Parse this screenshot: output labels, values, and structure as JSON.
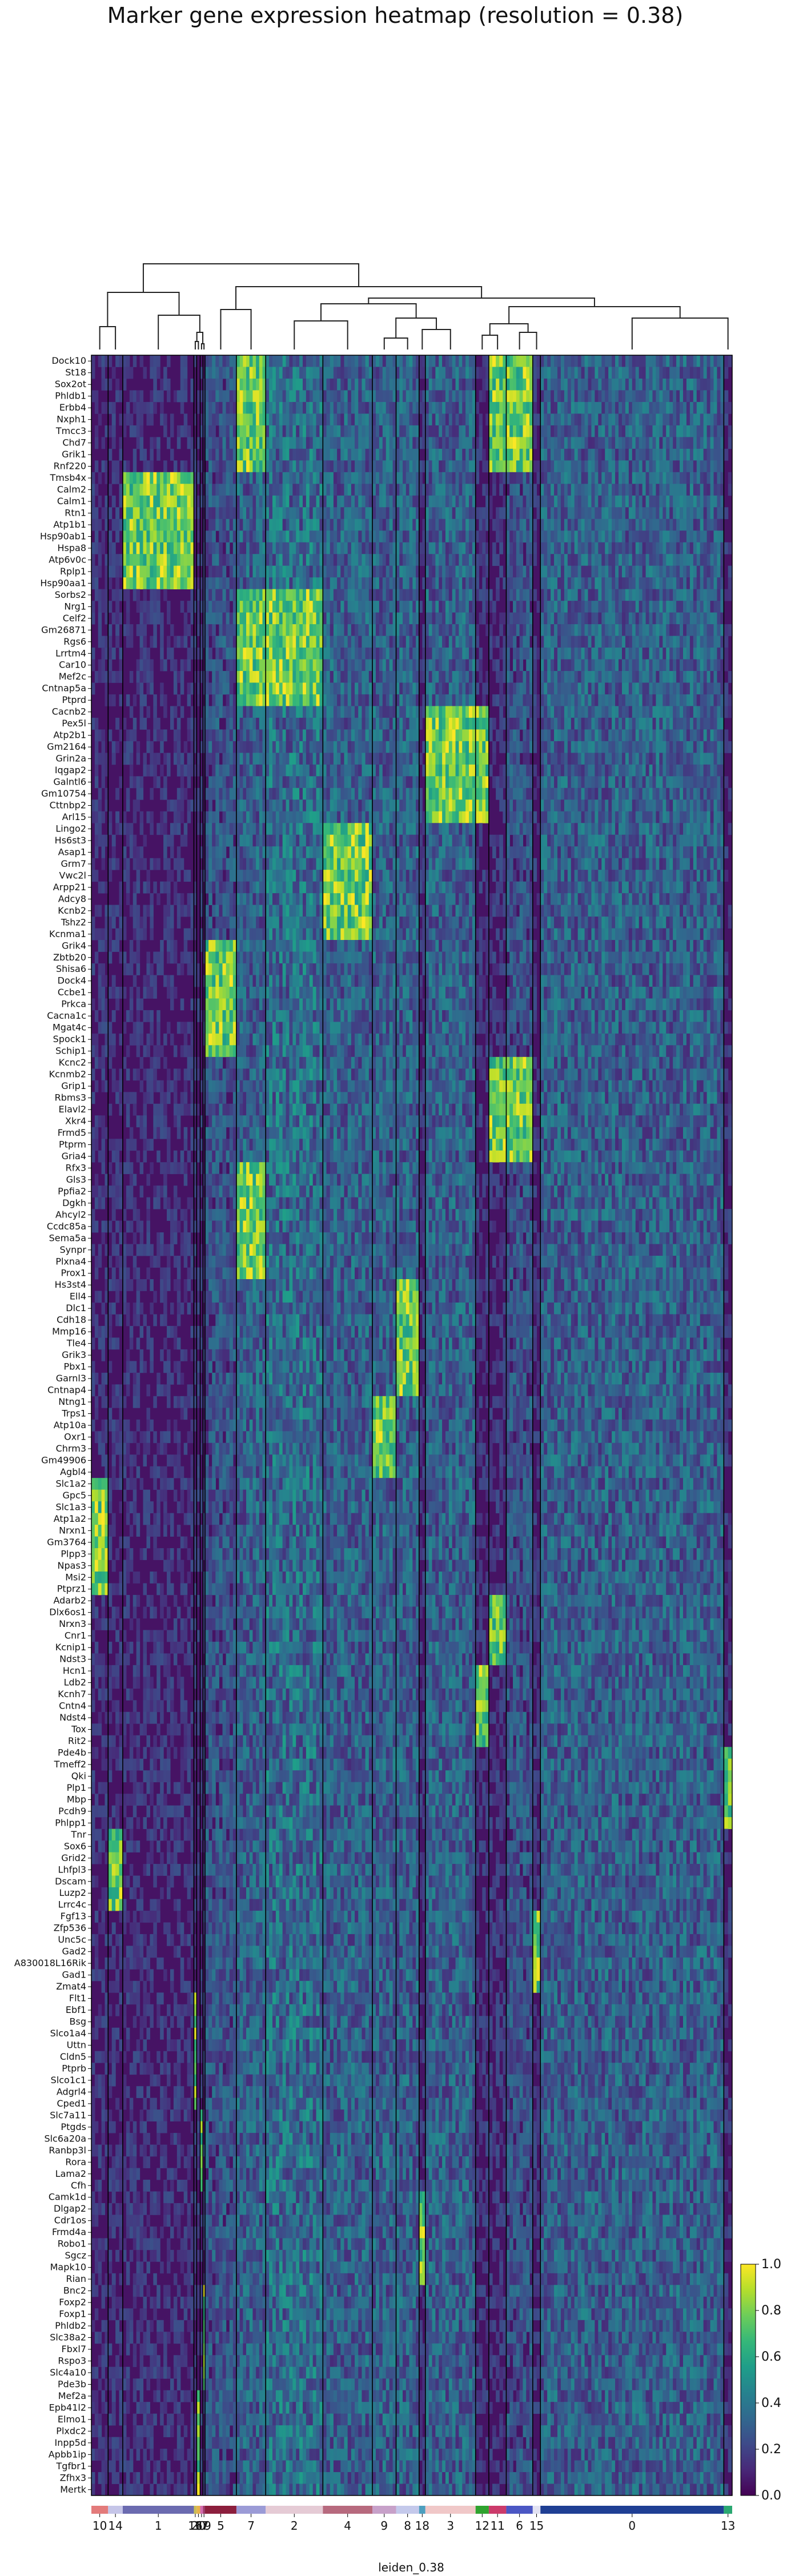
{
  "chart_data": {
    "type": "heatmap",
    "title": "Marker gene expression heatmap (resolution = 0.38)",
    "xlabel": "leiden_0.38",
    "ylabel": "",
    "colormap": "viridis",
    "colorbar": {
      "min": 0.0,
      "max": 1.0,
      "ticks": [
        "0.0",
        "0.2",
        "0.4",
        "0.6",
        "0.8",
        "1.0"
      ]
    },
    "clusters": [
      {
        "label": "10",
        "width": 0.024,
        "color": "#e37b7b"
      },
      {
        "label": "14",
        "width": 0.021,
        "color": "#c5c5e8"
      },
      {
        "label": "1",
        "width": 0.102,
        "color": "#6b6bb0"
      },
      {
        "label": "16",
        "width": 0.004,
        "color": "#c9bd56"
      },
      {
        "label": "20",
        "width": 0.005,
        "color": "#e7b34a"
      },
      {
        "label": "17",
        "width": 0.004,
        "color": "#d46bb0"
      },
      {
        "label": "19",
        "width": 0.003,
        "color": "#9e3a6a"
      },
      {
        "label": "5",
        "width": 0.045,
        "color": "#8c1f3d"
      },
      {
        "label": "7",
        "width": 0.042,
        "color": "#9b9bd6"
      },
      {
        "label": "2",
        "width": 0.082,
        "color": "#e5cbd5"
      },
      {
        "label": "4",
        "width": 0.071,
        "color": "#b76a7e"
      },
      {
        "label": "9",
        "width": 0.034,
        "color": "#c7a1c9"
      },
      {
        "label": "8",
        "width": 0.033,
        "color": "#c4c9eb"
      },
      {
        "label": "18",
        "width": 0.009,
        "color": "#4d9fbf"
      },
      {
        "label": "3",
        "width": 0.072,
        "color": "#f0c8c8"
      },
      {
        "label": "12",
        "width": 0.019,
        "color": "#2fa32f"
      },
      {
        "label": "11",
        "width": 0.025,
        "color": "#cc3b6b"
      },
      {
        "label": "6",
        "width": 0.038,
        "color": "#4b57c4"
      },
      {
        "label": "15",
        "width": 0.011,
        "color": "#e2e2f2"
      },
      {
        "label": "0",
        "width": 0.263,
        "color": "#1f3f94"
      },
      {
        "label": "13",
        "width": 0.012,
        "color": "#2aa872"
      }
    ],
    "gene_groups": [
      {
        "genes": [
          "Dock10",
          "St18",
          "Sox2ot",
          "Phldb1",
          "Erbb4",
          "Nxph1",
          "Tmcc3",
          "Chd7",
          "Grik1",
          "Rnf220"
        ],
        "high": [
          "7",
          "11",
          "6"
        ]
      },
      {
        "genes": [
          "Tmsb4x",
          "Calm2",
          "Calm1",
          "Rtn1",
          "Atp1b1",
          "Hsp90ab1",
          "Hspa8",
          "Atp6v0c",
          "Rplp1",
          "Hsp90aa1"
        ],
        "high": [
          "1"
        ]
      },
      {
        "genes": [
          "Sorbs2",
          "Nrg1",
          "Celf2",
          "Gm26871",
          "Rgs6",
          "Lrrtm4",
          "Car10",
          "Mef2c",
          "Cntnap5a",
          "Ptprd"
        ],
        "high": [
          "2",
          "7"
        ]
      },
      {
        "genes": [
          "Cacnb2",
          "Pex5l",
          "Atp2b1",
          "Gm2164",
          "Grin2a",
          "Iqgap2",
          "Galntl6",
          "Gm10754",
          "Cttnbp2",
          "Arl15"
        ],
        "high": [
          "3",
          "12"
        ]
      },
      {
        "genes": [
          "Lingo2",
          "Hs6st3",
          "Asap1",
          "Grm7",
          "Vwc2l",
          "Arpp21",
          "Adcy8",
          "Kcnb2",
          "Tshz2",
          "Kcnma1"
        ],
        "high": [
          "4"
        ]
      },
      {
        "genes": [
          "Grik4",
          "Zbtb20",
          "Shisa6",
          "Dock4",
          "Ccbe1",
          "Prkca",
          "Cacna1c",
          "Mgat4c",
          "Spock1",
          "Schip1"
        ],
        "high": [
          "5"
        ]
      },
      {
        "genes": [
          "Kcnc2",
          "Kcnmb2",
          "Grip1",
          "Rbms3",
          "Elavl2",
          "Xkr4",
          "Frmd5",
          "Ptprm",
          "Gria4"
        ],
        "high": [
          "11",
          "6"
        ]
      },
      {
        "genes": [
          "Rfx3",
          "Gls3",
          "Ppfia2",
          "Dgkh",
          "Ahcyl2",
          "Ccdc85a",
          "Sema5a",
          "Syn​pr",
          "Plxna4",
          "Prox1"
        ],
        "high": [
          "7"
        ]
      },
      {
        "genes": [
          "Hs3st4",
          "Ell4",
          "Dlc1",
          "Cdh18",
          "Mmp16",
          "Tle4",
          "Grik3",
          "Pbx1",
          "Garnl3",
          "Cntnap4"
        ],
        "high": [
          "8"
        ]
      },
      {
        "genes": [
          "Ntng1",
          "Trps1",
          "Atp10a",
          "Oxr1",
          "Chrm3",
          "Gm49906",
          "Agbl4"
        ],
        "high": [
          "9"
        ]
      },
      {
        "genes": [
          "Slc1a2",
          "Gpc5",
          "Slc1a3",
          "Atp1a2",
          "Nrxn1",
          "Gm3764",
          "Plpp3",
          "Npas3",
          "Msi2",
          "Ptprz1"
        ],
        "high": [
          "10"
        ]
      },
      {
        "genes": [
          "Adarb2",
          "Dlx6os1",
          "Nrxn3",
          "Cnr1",
          "Kcnip1",
          "Ndst3"
        ],
        "high": [
          "11"
        ]
      },
      {
        "genes": [
          "Hcn1",
          "Ldb2",
          "Kcnh7",
          "Cntn4",
          "Ndst4",
          "Tox",
          "Rit2"
        ],
        "high": [
          "12"
        ]
      },
      {
        "genes": [
          "Pde4b",
          "Tmeff2",
          "Qki",
          "Plp1",
          "Mbp",
          "Pcdh9",
          "Phlpp1"
        ],
        "high": [
          "13"
        ]
      },
      {
        "genes": [
          "Tnr",
          "Sox6",
          "Grid2",
          "Lhfpl3",
          "Dscam",
          "Luzp2",
          "Lrrc4c"
        ],
        "high": [
          "14"
        ]
      },
      {
        "genes": [
          "Fgf13",
          "Zfp536",
          "Unc5c",
          "Gad2",
          "A830018L16Rik",
          "Gad1",
          "Zmat4"
        ],
        "high": [
          "15"
        ]
      },
      {
        "genes": [
          "Flt1",
          "Ebf1",
          "Bsg",
          "Slco1a4",
          "Uttn",
          "Cldn5",
          "Ptprb",
          "Slco1c1",
          "Adgrl4",
          "Cped1"
        ],
        "high": [
          "16"
        ]
      },
      {
        "genes": [
          "Slc7a11",
          "Ptgds",
          "Slc6a20a",
          "Ranbp3l",
          "Rora",
          "Lama2",
          "Cfh"
        ],
        "high": [
          "17"
        ]
      },
      {
        "genes": [
          "Camk1d",
          "Dlgap2",
          "Cdr1os",
          "Frmd4a",
          "Robo1",
          "Sgcz",
          "Mapk10",
          "Rian"
        ],
        "high": [
          "18"
        ]
      },
      {
        "genes": [
          "Bnc2",
          "Foxp2",
          "Foxp1",
          "Phldb2",
          "Slc38a2",
          "Fbxl7",
          "Rspo3",
          "Slc4a10",
          "Pde3b"
        ],
        "high": [
          "19"
        ]
      },
      {
        "genes": [
          "Mef2a",
          "Epb41l2",
          "Elmo1",
          "Plxdc2",
          "Inpp5d",
          "Apbb1ip",
          "Tgfbr1",
          "Zfhx3",
          "Mertk"
        ],
        "high": [
          "20"
        ]
      }
    ]
  }
}
